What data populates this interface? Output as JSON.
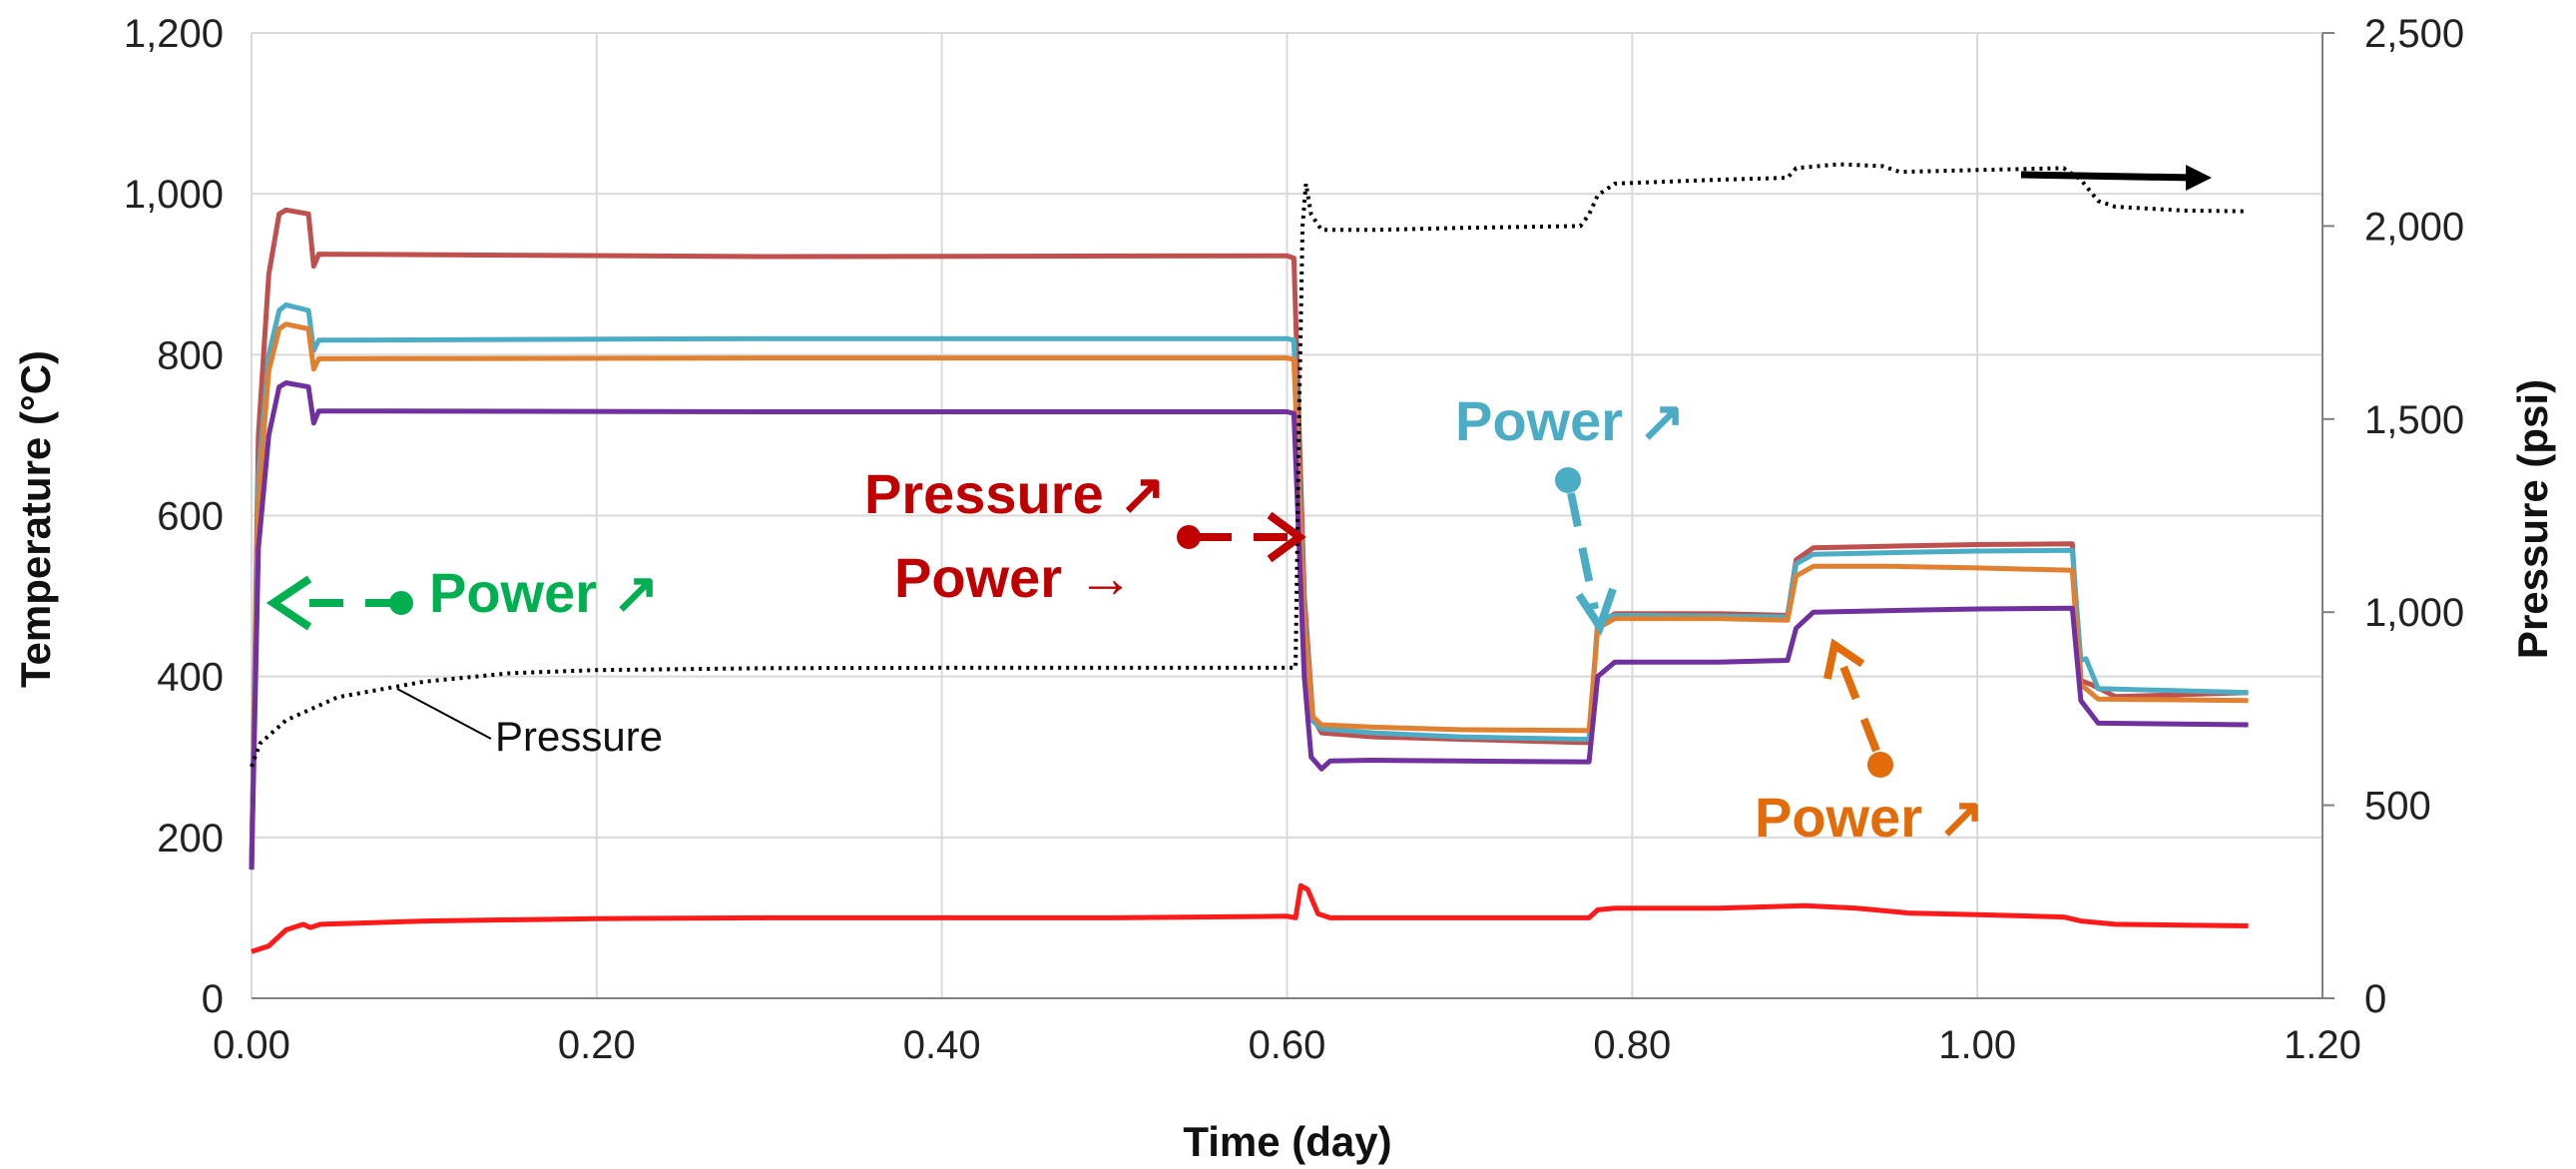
{
  "chart_data": {
    "type": "line",
    "title": "",
    "xlabel": "Time (day)",
    "ylabel": "Temperature (°C)",
    "y2label": "Pressure (psi)",
    "xlim": [
      0,
      1.2
    ],
    "ylim": [
      0,
      1200
    ],
    "y2lim": [
      0,
      2500
    ],
    "xticks": [
      "0.00",
      "0.20",
      "0.40",
      "0.60",
      "0.80",
      "1.00",
      "1.20"
    ],
    "yticks": [
      "0",
      "200",
      "400",
      "600",
      "800",
      "1,000",
      "1,200"
    ],
    "y2ticks": [
      "0",
      "500",
      "1,000",
      "1,500",
      "2,000",
      "2,500"
    ],
    "grid": true,
    "legend": "none",
    "colors": {
      "series1": "#c0504d",
      "series2": "#4bacc6",
      "series3": "#e08030",
      "series4": "#7030a0",
      "series5": "#ff1a1a",
      "pressure": "#000000",
      "green": "#00b050",
      "darkred": "#c00000",
      "teal": "#4bacc6",
      "orange": "#e36c0a"
    },
    "series": [
      {
        "axis": "left",
        "color": "#c0504d",
        "points": [
          [
            0,
            160
          ],
          [
            0.004,
            700
          ],
          [
            0.01,
            900
          ],
          [
            0.016,
            975
          ],
          [
            0.02,
            980
          ],
          [
            0.033,
            975
          ],
          [
            0.036,
            910
          ],
          [
            0.039,
            925
          ],
          [
            0.3,
            922
          ],
          [
            0.6,
            923
          ],
          [
            0.604,
            920
          ],
          [
            0.61,
            500
          ],
          [
            0.615,
            350
          ],
          [
            0.62,
            330
          ],
          [
            0.65,
            325
          ],
          [
            0.7,
            322
          ],
          [
            0.77,
            318
          ],
          [
            0.775,
            318
          ],
          [
            0.78,
            465
          ],
          [
            0.79,
            478
          ],
          [
            0.85,
            478
          ],
          [
            0.89,
            476
          ],
          [
            0.895,
            545
          ],
          [
            0.905,
            560
          ],
          [
            0.95,
            562
          ],
          [
            1.0,
            564
          ],
          [
            1.055,
            565
          ],
          [
            1.06,
            395
          ],
          [
            1.066,
            390
          ],
          [
            1.08,
            375
          ],
          [
            1.157,
            380
          ]
        ]
      },
      {
        "axis": "left",
        "color": "#4bacc6",
        "points": [
          [
            0,
            160
          ],
          [
            0.004,
            650
          ],
          [
            0.01,
            800
          ],
          [
            0.016,
            855
          ],
          [
            0.02,
            862
          ],
          [
            0.033,
            855
          ],
          [
            0.036,
            805
          ],
          [
            0.039,
            818
          ],
          [
            0.3,
            820
          ],
          [
            0.6,
            820
          ],
          [
            0.604,
            818
          ],
          [
            0.61,
            480
          ],
          [
            0.615,
            345
          ],
          [
            0.62,
            335
          ],
          [
            0.65,
            330
          ],
          [
            0.7,
            325
          ],
          [
            0.77,
            322
          ],
          [
            0.775,
            322
          ],
          [
            0.78,
            470
          ],
          [
            0.79,
            476
          ],
          [
            0.85,
            475
          ],
          [
            0.89,
            474
          ],
          [
            0.895,
            540
          ],
          [
            0.905,
            552
          ],
          [
            0.95,
            554
          ],
          [
            1.0,
            556
          ],
          [
            1.055,
            557
          ],
          [
            1.06,
            420
          ],
          [
            1.063,
            422
          ],
          [
            1.07,
            385
          ],
          [
            1.157,
            380
          ]
        ]
      },
      {
        "axis": "left",
        "color": "#e08030",
        "points": [
          [
            0,
            160
          ],
          [
            0.004,
            620
          ],
          [
            0.01,
            780
          ],
          [
            0.016,
            832
          ],
          [
            0.02,
            838
          ],
          [
            0.033,
            832
          ],
          [
            0.036,
            782
          ],
          [
            0.039,
            795
          ],
          [
            0.3,
            796
          ],
          [
            0.6,
            796
          ],
          [
            0.604,
            794
          ],
          [
            0.61,
            470
          ],
          [
            0.615,
            350
          ],
          [
            0.62,
            340
          ],
          [
            0.65,
            337
          ],
          [
            0.7,
            334
          ],
          [
            0.77,
            333
          ],
          [
            0.775,
            333
          ],
          [
            0.78,
            460
          ],
          [
            0.79,
            472
          ],
          [
            0.85,
            472
          ],
          [
            0.89,
            470
          ],
          [
            0.895,
            525
          ],
          [
            0.905,
            537
          ],
          [
            0.95,
            537
          ],
          [
            1.0,
            535
          ],
          [
            1.055,
            532
          ],
          [
            1.06,
            390
          ],
          [
            1.07,
            372
          ],
          [
            1.157,
            370
          ]
        ]
      },
      {
        "axis": "left",
        "color": "#7030a0",
        "points": [
          [
            0,
            160
          ],
          [
            0.004,
            560
          ],
          [
            0.01,
            700
          ],
          [
            0.016,
            760
          ],
          [
            0.02,
            765
          ],
          [
            0.033,
            760
          ],
          [
            0.036,
            715
          ],
          [
            0.039,
            730
          ],
          [
            0.3,
            729
          ],
          [
            0.6,
            729
          ],
          [
            0.604,
            727
          ],
          [
            0.61,
            400
          ],
          [
            0.614,
            300
          ],
          [
            0.62,
            285
          ],
          [
            0.625,
            295
          ],
          [
            0.65,
            296
          ],
          [
            0.7,
            295
          ],
          [
            0.77,
            294
          ],
          [
            0.775,
            294
          ],
          [
            0.78,
            400
          ],
          [
            0.79,
            418
          ],
          [
            0.85,
            418
          ],
          [
            0.89,
            420
          ],
          [
            0.895,
            460
          ],
          [
            0.905,
            480
          ],
          [
            0.95,
            482
          ],
          [
            1.0,
            484
          ],
          [
            1.055,
            485
          ],
          [
            1.06,
            370
          ],
          [
            1.07,
            342
          ],
          [
            1.157,
            340
          ]
        ]
      },
      {
        "axis": "left",
        "color": "#ff1a1a",
        "points": [
          [
            0,
            58
          ],
          [
            0.01,
            65
          ],
          [
            0.02,
            85
          ],
          [
            0.03,
            92
          ],
          [
            0.034,
            88
          ],
          [
            0.04,
            92
          ],
          [
            0.1,
            96
          ],
          [
            0.2,
            99
          ],
          [
            0.3,
            100
          ],
          [
            0.4,
            100
          ],
          [
            0.5,
            100
          ],
          [
            0.6,
            102
          ],
          [
            0.605,
            100
          ],
          [
            0.608,
            140
          ],
          [
            0.612,
            135
          ],
          [
            0.618,
            105
          ],
          [
            0.625,
            100
          ],
          [
            0.65,
            100
          ],
          [
            0.7,
            100
          ],
          [
            0.775,
            100
          ],
          [
            0.78,
            110
          ],
          [
            0.79,
            112
          ],
          [
            0.85,
            112
          ],
          [
            0.9,
            115
          ],
          [
            0.93,
            112
          ],
          [
            0.96,
            106
          ],
          [
            1.0,
            104
          ],
          [
            1.05,
            101
          ],
          [
            1.06,
            96
          ],
          [
            1.08,
            92
          ],
          [
            1.157,
            90
          ]
        ]
      }
    ],
    "pressure": {
      "axis": "right",
      "color": "#000000",
      "points": [
        [
          0,
          600
        ],
        [
          0.005,
          660
        ],
        [
          0.02,
          720
        ],
        [
          0.05,
          780
        ],
        [
          0.1,
          820
        ],
        [
          0.15,
          842
        ],
        [
          0.2,
          850
        ],
        [
          0.3,
          855
        ],
        [
          0.4,
          856
        ],
        [
          0.5,
          856
        ],
        [
          0.605,
          856
        ],
        [
          0.607,
          1500
        ],
        [
          0.609,
          2000
        ],
        [
          0.611,
          2110
        ],
        [
          0.614,
          2030
        ],
        [
          0.62,
          1990
        ],
        [
          0.65,
          1990
        ],
        [
          0.7,
          1995
        ],
        [
          0.77,
          2000
        ],
        [
          0.775,
          2030
        ],
        [
          0.78,
          2080
        ],
        [
          0.79,
          2110
        ],
        [
          0.85,
          2120
        ],
        [
          0.89,
          2125
        ],
        [
          0.895,
          2150
        ],
        [
          0.92,
          2160
        ],
        [
          0.945,
          2155
        ],
        [
          0.955,
          2140
        ],
        [
          1.0,
          2145
        ],
        [
          1.05,
          2150
        ],
        [
          1.06,
          2120
        ],
        [
          1.07,
          2065
        ],
        [
          1.08,
          2050
        ],
        [
          1.12,
          2040
        ],
        [
          1.157,
          2038
        ]
      ]
    },
    "annotations": {
      "green_label": "Power ↗",
      "red_label_1": "Pressure ↗",
      "red_label_2": "Power →",
      "teal_label": "Power ↗",
      "orange_label": "Power ↗",
      "pressure_label": "Pressure"
    }
  }
}
